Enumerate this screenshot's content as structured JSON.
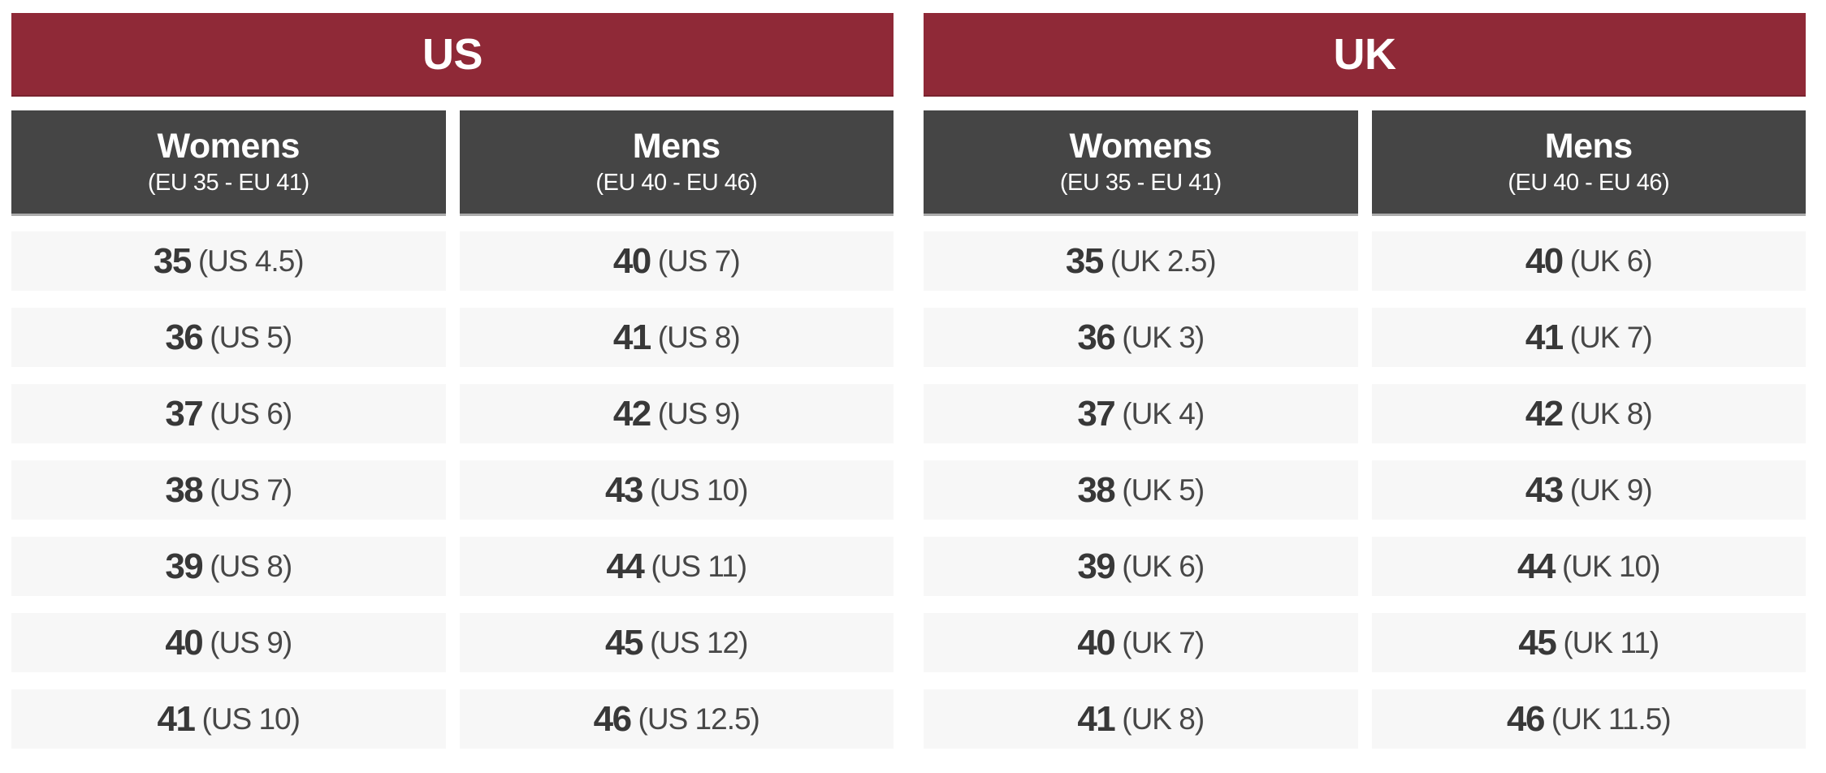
{
  "colors": {
    "title_bg": "#8F2937",
    "title_text": "#FFFFFF",
    "header_bg": "#454545",
    "header_border": "#ABABAB",
    "row_bg": "#F7F7F7",
    "number_text": "#383838",
    "conversion_text": "#474747"
  },
  "chart_data": [
    {
      "type": "table",
      "title": "US",
      "columns": [
        {
          "name": "Womens",
          "range": "(EU 35 - EU 41)",
          "cells": [
            {
              "eu": "35",
              "conv": "(US 4.5)"
            },
            {
              "eu": "36",
              "conv": "(US 5)"
            },
            {
              "eu": "37",
              "conv": "(US 6)"
            },
            {
              "eu": "38",
              "conv": "(US 7)"
            },
            {
              "eu": "39",
              "conv": "(US 8)"
            },
            {
              "eu": "40",
              "conv": "(US 9)"
            },
            {
              "eu": "41",
              "conv": "(US 10)"
            }
          ]
        },
        {
          "name": "Mens",
          "range": "(EU 40 - EU 46)",
          "cells": [
            {
              "eu": "40",
              "conv": "(US 7)"
            },
            {
              "eu": "41",
              "conv": "(US 8)"
            },
            {
              "eu": "42",
              "conv": "(US 9)"
            },
            {
              "eu": "43",
              "conv": "(US 10)"
            },
            {
              "eu": "44",
              "conv": "(US 11)"
            },
            {
              "eu": "45",
              "conv": "(US 12)"
            },
            {
              "eu": "46",
              "conv": "(US 12.5)"
            }
          ]
        }
      ]
    },
    {
      "type": "table",
      "title": "UK",
      "columns": [
        {
          "name": "Womens",
          "range": "(EU 35 - EU 41)",
          "cells": [
            {
              "eu": "35",
              "conv": "(UK 2.5)"
            },
            {
              "eu": "36",
              "conv": "(UK 3)"
            },
            {
              "eu": "37",
              "conv": "(UK 4)"
            },
            {
              "eu": "38",
              "conv": "(UK 5)"
            },
            {
              "eu": "39",
              "conv": "(UK 6)"
            },
            {
              "eu": "40",
              "conv": "(UK 7)"
            },
            {
              "eu": "41",
              "conv": "(UK 8)"
            }
          ]
        },
        {
          "name": "Mens",
          "range": "(EU 40 - EU 46)",
          "cells": [
            {
              "eu": "40",
              "conv": "(UK 6)"
            },
            {
              "eu": "41",
              "conv": "(UK 7)"
            },
            {
              "eu": "42",
              "conv": "(UK 8)"
            },
            {
              "eu": "43",
              "conv": "(UK 9)"
            },
            {
              "eu": "44",
              "conv": "(UK 10)"
            },
            {
              "eu": "45",
              "conv": "(UK 11)"
            },
            {
              "eu": "46",
              "conv": "(UK 11.5)"
            }
          ]
        }
      ]
    }
  ]
}
